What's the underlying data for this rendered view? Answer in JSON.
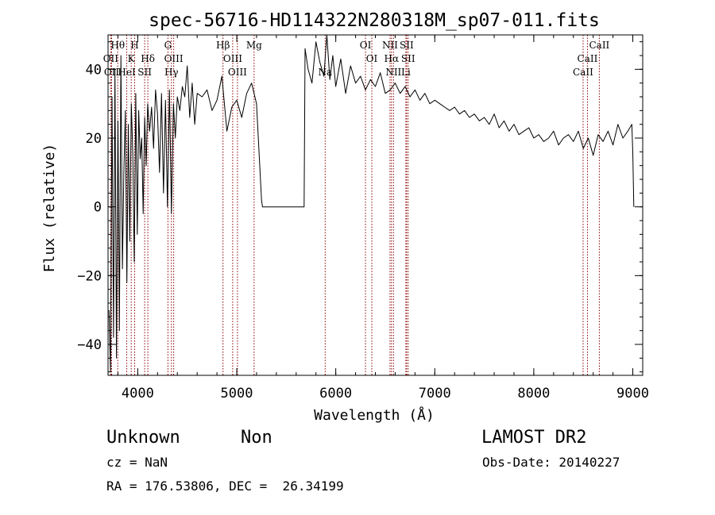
{
  "chart_data": {
    "type": "line",
    "title": "spec-56716-HD114322N280318M_sp07-011.fits",
    "xlabel": "Wavelength (Å)",
    "ylabel": "Flux (relative)",
    "xlim": [
      3700,
      9100
    ],
    "ylim": [
      -49,
      50
    ],
    "x_ticks": [
      4000,
      5000,
      6000,
      7000,
      8000,
      9000
    ],
    "y_ticks": [
      -40,
      -20,
      0,
      20,
      40
    ],
    "x_minor_step": 200,
    "y_minor_step": 4,
    "grid": false,
    "spectrum_color": "#000000",
    "line_color": "#8b0000",
    "spectrum": {
      "x": [
        3710,
        3725,
        3740,
        3755,
        3770,
        3785,
        3800,
        3815,
        3830,
        3845,
        3860,
        3875,
        3890,
        3905,
        3920,
        3935,
        3950,
        3965,
        3980,
        3995,
        4010,
        4025,
        4040,
        4055,
        4070,
        4085,
        4100,
        4120,
        4140,
        4160,
        4180,
        4200,
        4220,
        4240,
        4260,
        4280,
        4300,
        4320,
        4340,
        4360,
        4380,
        4400,
        4425,
        4450,
        4475,
        4500,
        4525,
        4550,
        4575,
        4600,
        4650,
        4700,
        4750,
        4800,
        4850,
        4900,
        4950,
        5000,
        5050,
        5100,
        5150,
        5200,
        5250,
        5260,
        5400,
        5600,
        5680,
        5690,
        5720,
        5760,
        5800,
        5840,
        5880,
        5910,
        5940,
        5970,
        6000,
        6050,
        6100,
        6150,
        6200,
        6250,
        6300,
        6350,
        6400,
        6450,
        6500,
        6550,
        6600,
        6650,
        6700,
        6750,
        6800,
        6850,
        6900,
        6950,
        7000,
        7050,
        7100,
        7150,
        7200,
        7250,
        7300,
        7350,
        7400,
        7450,
        7500,
        7550,
        7600,
        7650,
        7700,
        7750,
        7800,
        7850,
        7900,
        7950,
        8000,
        8050,
        8100,
        8150,
        8200,
        8250,
        8300,
        8350,
        8400,
        8450,
        8500,
        8550,
        8600,
        8650,
        8700,
        8750,
        8800,
        8850,
        8900,
        8950,
        8990,
        9000,
        9010
      ],
      "y": [
        -30,
        -48,
        32,
        -38,
        40,
        -44,
        25,
        -36,
        44,
        -18,
        10,
        28,
        -22,
        24,
        -10,
        30,
        15,
        -16,
        33,
        -8,
        28,
        14,
        20,
        -2,
        26,
        12,
        30,
        22,
        29,
        17,
        34,
        27,
        10,
        33,
        4,
        31,
        0,
        34,
        -2,
        30,
        20,
        32,
        28,
        35,
        32,
        41,
        26,
        36,
        24,
        33,
        32,
        34,
        28,
        31,
        38,
        22,
        29,
        31,
        26,
        33,
        36,
        30,
        2,
        0,
        0,
        0,
        0,
        46,
        40,
        36,
        48,
        42,
        38,
        50,
        37,
        44,
        35,
        43,
        33,
        41,
        36,
        38,
        34,
        37,
        35,
        39,
        33,
        34,
        36,
        33,
        35,
        32,
        34,
        31,
        33,
        30,
        31,
        30,
        29,
        28,
        29,
        27,
        28,
        26,
        27,
        25,
        26,
        24,
        27,
        23,
        25,
        22,
        24,
        21,
        22,
        23,
        20,
        21,
        19,
        20,
        22,
        18,
        20,
        21,
        19,
        22,
        17,
        20,
        15,
        21,
        19,
        22,
        18,
        24,
        20,
        22,
        24,
        16,
        0
      ]
    },
    "line_labels": [
      {
        "name": "Hθ",
        "x": 3798,
        "row": 1
      },
      {
        "name": "OII",
        "x": 3727,
        "row": 2
      },
      {
        "name": "OII",
        "x": 3736,
        "row": 3
      },
      {
        "name": "H",
        "x": 3969,
        "row": 1
      },
      {
        "name": "K",
        "x": 3934,
        "row": 2
      },
      {
        "name": "HeI",
        "x": 3889,
        "row": 3
      },
      {
        "name": "Hδ",
        "x": 4102,
        "row": 2
      },
      {
        "name": "SII",
        "x": 4070,
        "row": 3
      },
      {
        "name": "G",
        "x": 4305,
        "row": 1
      },
      {
        "name": "OIII",
        "x": 4363,
        "row": 2
      },
      {
        "name": "Hγ",
        "x": 4340,
        "row": 3
      },
      {
        "name": "Hβ",
        "x": 4861,
        "row": 1
      },
      {
        "name": "OIII",
        "x": 4959,
        "row": 2
      },
      {
        "name": "OIII",
        "x": 5007,
        "row": 3
      },
      {
        "name": "Mg",
        "x": 5175,
        "row": 1
      },
      {
        "name": "Na",
        "x": 5893,
        "row": 3
      },
      {
        "name": "OI",
        "x": 6300,
        "row": 1
      },
      {
        "name": "OI",
        "x": 6364,
        "row": 2
      },
      {
        "name": "NII",
        "x": 6548,
        "row": 1
      },
      {
        "name": "SII",
        "x": 6716,
        "row": 1
      },
      {
        "name": "Hα",
        "x": 6563,
        "row": 2
      },
      {
        "name": "SII",
        "x": 6731,
        "row": 2
      },
      {
        "name": "NII",
        "x": 6583,
        "row": 3
      },
      {
        "name": "Li",
        "x": 6708,
        "row": 3
      },
      {
        "name": "CaII",
        "x": 8662,
        "row": 1
      },
      {
        "name": "CaII",
        "x": 8542,
        "row": 2
      },
      {
        "name": "CaII",
        "x": 8498,
        "row": 3
      }
    ]
  },
  "footer": {
    "object_class": "Unknown",
    "object_subclass": "Non",
    "survey": "LAMOST DR2",
    "redshift": "cz = NaN",
    "obs_date": "Obs-Date: 20140227",
    "coordinates": "RA = 176.53806, DEC =  26.34199"
  }
}
